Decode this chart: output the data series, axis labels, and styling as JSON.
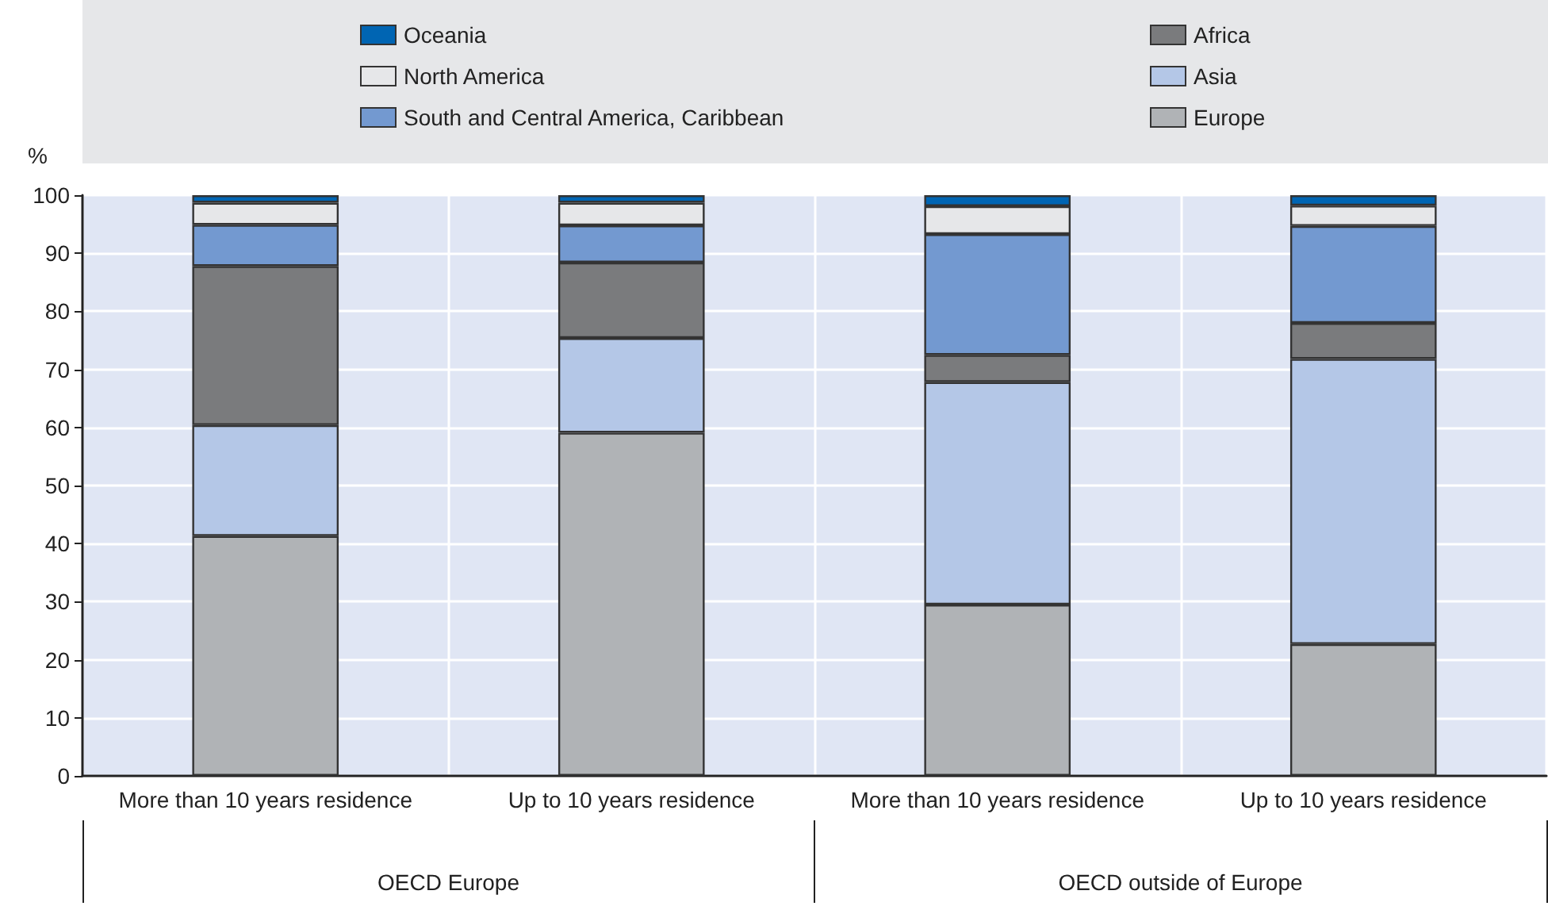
{
  "chart_data": {
    "type": "bar",
    "stacked": true,
    "ylabel": "%",
    "categories": [
      "More than 10 years residence",
      "Up to 10 years residence",
      "More than 10 years residence",
      "Up to 10 years residence"
    ],
    "annotations": [
      "OECD Europe",
      "OECD outside of Europe"
    ],
    "series": [
      {
        "name": "Europe",
        "color": "#b0b3b6",
        "values": [
          41.3,
          59.1,
          29.5,
          22.7
        ]
      },
      {
        "name": "Asia",
        "color": "#b4c7e7",
        "values": [
          19.1,
          16.3,
          38.3,
          49.1
        ]
      },
      {
        "name": "Africa",
        "color": "#7a7b7d",
        "values": [
          27.4,
          13.0,
          4.7,
          6.2
        ]
      },
      {
        "name": "South and Central America, Caribbean",
        "color": "#7399d0",
        "values": [
          7.1,
          6.4,
          20.8,
          16.7
        ]
      },
      {
        "name": "North America",
        "color": "#e6e7e9",
        "values": [
          3.8,
          3.9,
          4.8,
          3.5
        ]
      },
      {
        "name": "Oceania",
        "color": "#0065b3",
        "values": [
          1.3,
          1.3,
          1.9,
          1.8
        ]
      }
    ],
    "ylim": [
      0,
      100
    ],
    "yticks": [
      0,
      10,
      20,
      30,
      40,
      50,
      60,
      70,
      80,
      90,
      100
    ],
    "grid": true,
    "legend": "top"
  }
}
